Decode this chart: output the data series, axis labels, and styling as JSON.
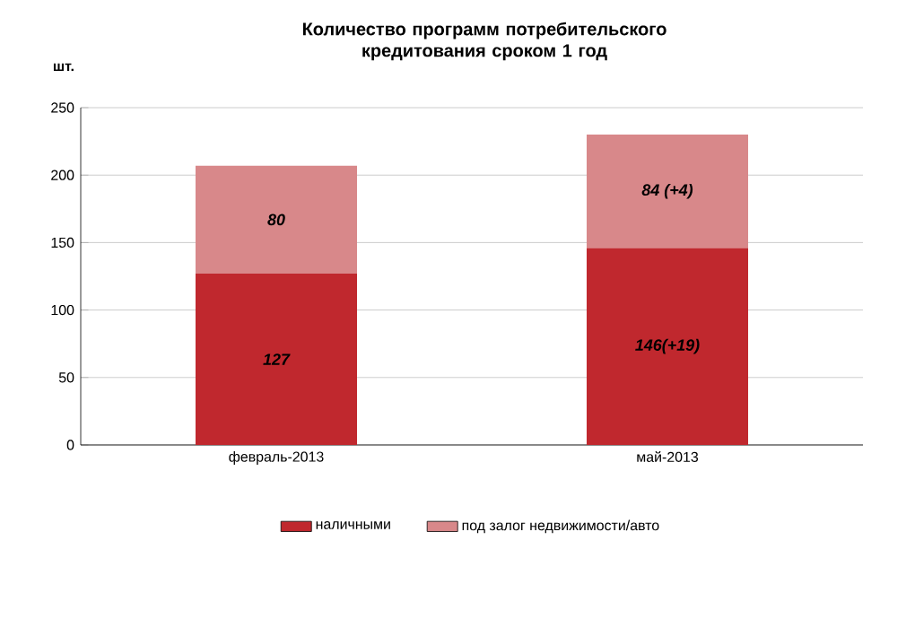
{
  "chart_data": {
    "type": "bar",
    "stacked": true,
    "title": "Количество программ потребительского кредитования сроком 1 год",
    "ylabel": "шт.",
    "categories": [
      "февраль-2013",
      "май-2013"
    ],
    "series": [
      {
        "name": "наличными",
        "color": "#c0282e",
        "values": [
          127,
          146
        ],
        "value_labels": [
          "127",
          "146(+19)"
        ]
      },
      {
        "name": "под залог недвижимости/авто",
        "color": "#d8888a",
        "values": [
          80,
          84
        ],
        "value_labels": [
          "80",
          "84 (+4)"
        ]
      }
    ],
    "ylim": [
      0,
      250
    ],
    "yticks": [
      0,
      50,
      100,
      150,
      200,
      250
    ],
    "grid": "y",
    "legend": "bottom"
  }
}
